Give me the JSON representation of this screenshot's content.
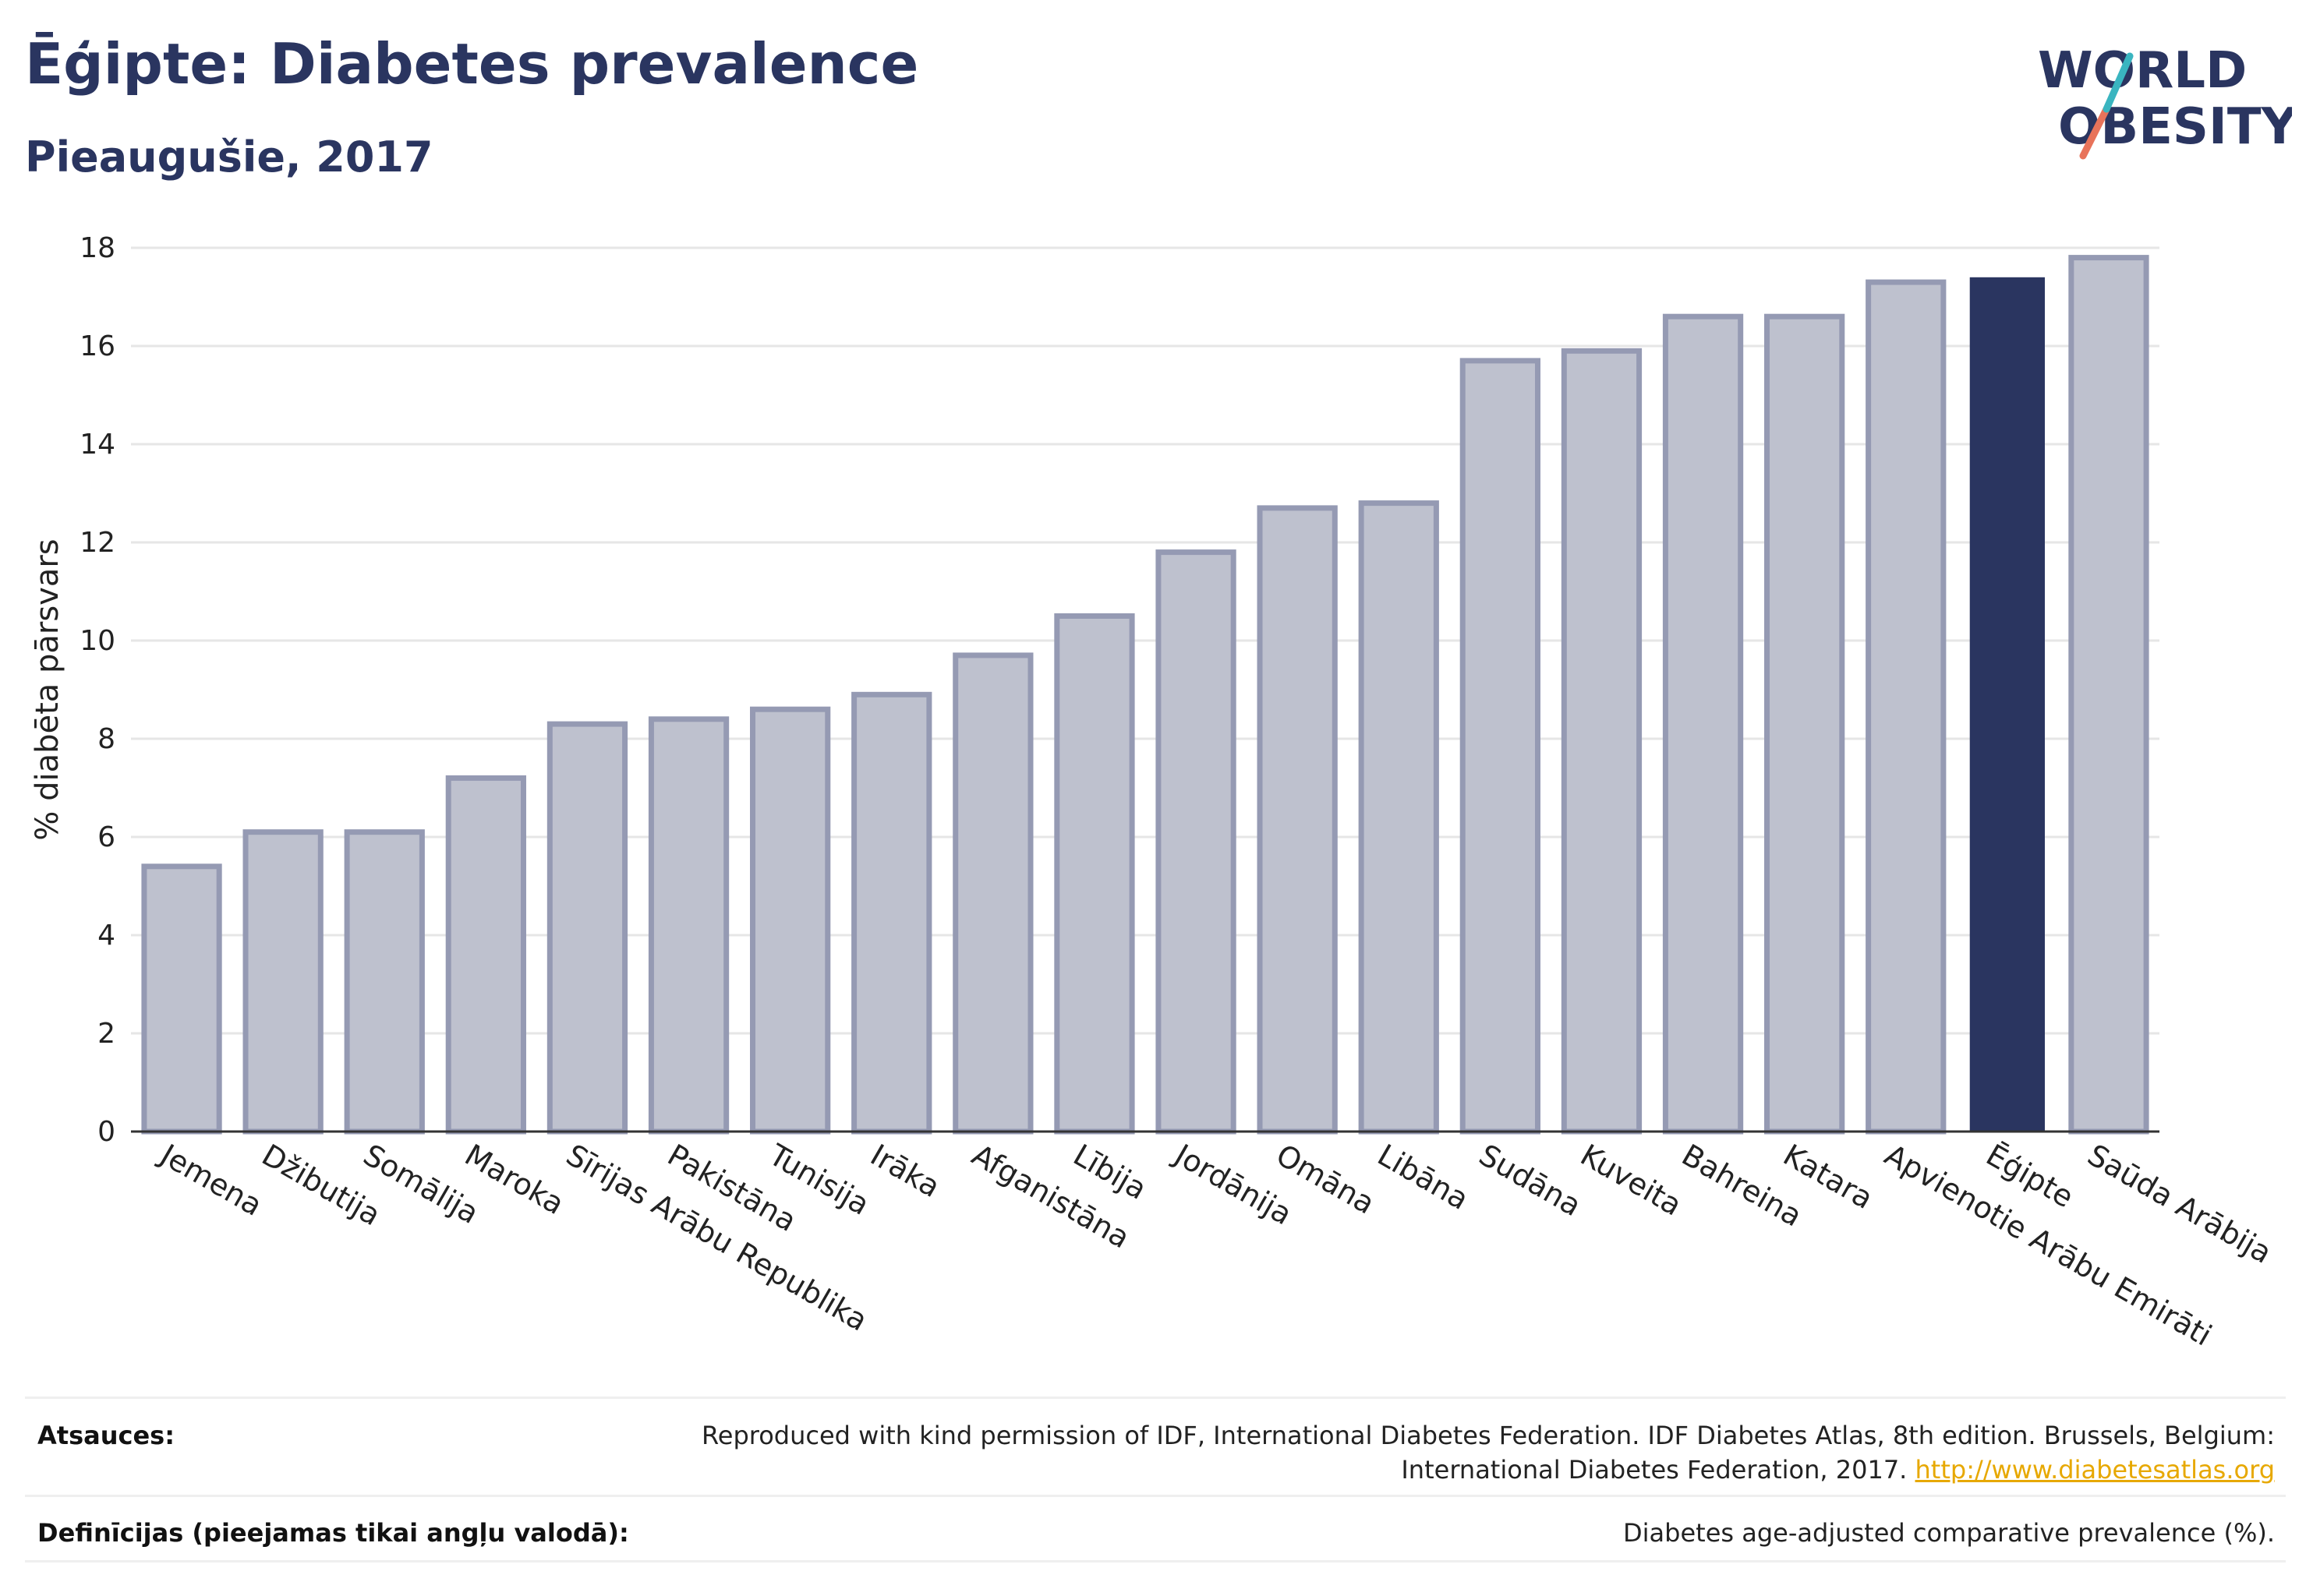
{
  "header": {
    "title": "Ēģipte: Diabetes prevalence",
    "subtitle": "Pieaugušie, 2017",
    "logo_line1": "WORLD",
    "logo_line2": "OBESITY"
  },
  "chart_data": {
    "type": "bar",
    "ylabel": "% diabēta pārsvars",
    "ylim": [
      0,
      18
    ],
    "yticks": [
      0,
      2,
      4,
      6,
      8,
      10,
      12,
      14,
      16,
      18
    ],
    "grid": true,
    "highlight": "Ēģipte",
    "colors": {
      "bar": "#bec1ce",
      "bar_stroke": "#959ab3",
      "highlight": "#2a3560",
      "grid": "#e6e6e6"
    },
    "categories": [
      "Jemena",
      "Džibutija",
      "Somālija",
      "Maroka",
      "Sīrijas Arābu Republika",
      "Pakistāna",
      "Tunisija",
      "Irāka",
      "Afganistāna",
      "Lībija",
      "Jordānija",
      "Omāna",
      "Libāna",
      "Sudāna",
      "Kuveita",
      "Bahreina",
      "Katara",
      "Apvienotie Arābu Emirāti",
      "Ēģipte",
      "Saūda Arābija"
    ],
    "values": [
      5.4,
      6.1,
      6.1,
      7.2,
      8.3,
      8.4,
      8.6,
      8.9,
      9.7,
      10.5,
      11.8,
      12.7,
      12.8,
      15.7,
      15.9,
      16.6,
      16.6,
      17.3,
      17.4,
      17.8
    ]
  },
  "footer": {
    "sources_label": "Atsauces:",
    "sources_text_1": "Reproduced with kind permission of IDF, International Diabetes Federation. IDF Diabetes Atlas, 8th edition. Brussels, Belgium:",
    "sources_text_2": "International Diabetes Federation, 2017.",
    "sources_link": "http://www.diabetesatlas.org",
    "definitions_label": "Definīcijas (pieejamas tikai angļu valodā):",
    "definitions_text": "Diabetes age-adjusted comparative prevalence (%)."
  }
}
